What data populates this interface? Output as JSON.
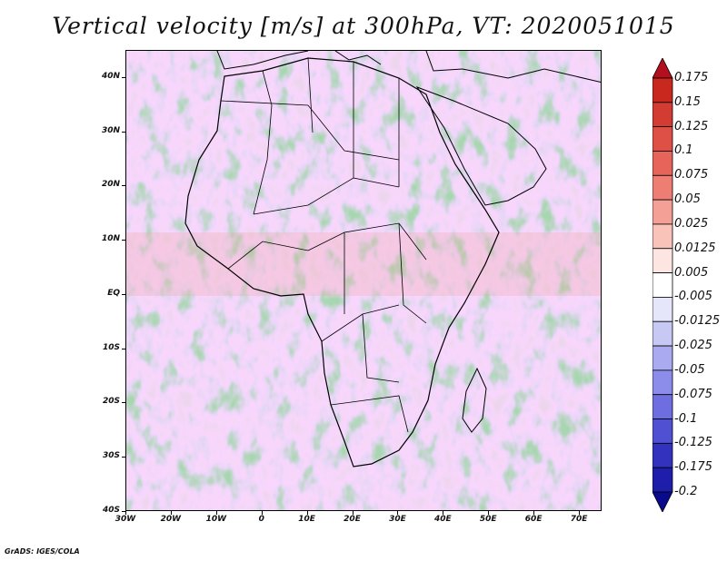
{
  "title": "Vertical velocity [m/s] at 300hPa, VT: 2020051015",
  "footer": "GrADS: IGES/COLA",
  "map": {
    "lon_range": [
      -30,
      75
    ],
    "lat_range": [
      -40,
      45
    ],
    "lat_labels": [
      "40N",
      "30N",
      "20N",
      "10N",
      "EQ",
      "10S",
      "20S",
      "30S",
      "40S"
    ],
    "lat_values": [
      40,
      30,
      20,
      10,
      0,
      -10,
      -20,
      -30,
      -40
    ],
    "lon_labels": [
      "30W",
      "20W",
      "10W",
      "0",
      "10E",
      "20E",
      "30E",
      "40E",
      "50E",
      "60E",
      "70E"
    ],
    "lon_values": [
      -30,
      -20,
      -10,
      0,
      10,
      20,
      30,
      40,
      50,
      60,
      70
    ]
  },
  "colorbar": {
    "labels": [
      "0.175",
      "0.15",
      "0.125",
      "0.1",
      "0.075",
      "0.05",
      "0.025",
      "0.0125",
      "0.005",
      "-0.005",
      "-0.0125",
      "-0.025",
      "-0.05",
      "-0.075",
      "-0.1",
      "-0.125",
      "-0.175",
      "-0.2"
    ],
    "colors": [
      "#b40f1e",
      "#c8281e",
      "#d23c32",
      "#de5046",
      "#e6645a",
      "#ee7d73",
      "#f5a096",
      "#f9c3b9",
      "#fde6e1",
      "#ffffff",
      "#e6e6fa",
      "#c8c8f5",
      "#aaaaf0",
      "#8c8ceb",
      "#6e6ee1",
      "#5050d2",
      "#3232be",
      "#1e1eaa",
      "#0a0a8c"
    ]
  }
}
